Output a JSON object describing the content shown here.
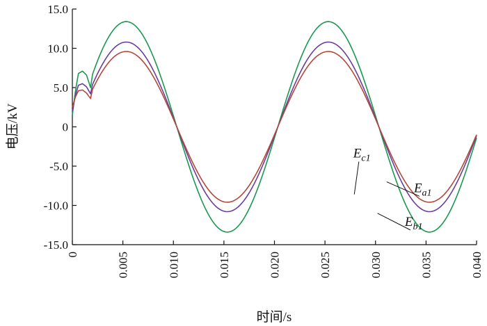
{
  "chart_data": {
    "type": "line",
    "title": "",
    "xlabel": "时间/s",
    "ylabel": "电压/kV",
    "xlim": [
      0,
      0.04
    ],
    "ylim": [
      -15,
      15
    ],
    "xticks": [
      "0",
      "0.005",
      "0.010",
      "0.015",
      "0.020",
      "0.025",
      "0.030",
      "0.035",
      "0.040"
    ],
    "yticks": [
      "15.0",
      "10.0",
      "5.0",
      "0",
      "-5.0",
      "-10.0",
      "-15.0"
    ],
    "grid": false,
    "legend": "none",
    "x_step": 0.0002,
    "series": [
      {
        "name": "Eb1",
        "label_main": "E",
        "label_sub": "b1",
        "color": "#1a9850",
        "amplitude": 13.4,
        "frequency_hz": 50,
        "phase_deg": -6,
        "points": [
          [
            0.0,
            1.5
          ],
          [
            0.0003,
            4.5
          ],
          [
            0.0006,
            6.8
          ],
          [
            0.001,
            7.1
          ],
          [
            0.0014,
            6.6
          ],
          [
            0.0018,
            5.0
          ]
        ]
      },
      {
        "name": "Ea1",
        "label_main": "E",
        "label_sub": "a1",
        "color": "#6a3d9a",
        "amplitude": 10.8,
        "frequency_hz": 50,
        "phase_deg": -6,
        "points": [
          [
            0.0,
            2.0
          ],
          [
            0.0003,
            4.0
          ],
          [
            0.0006,
            5.3
          ],
          [
            0.001,
            5.5
          ],
          [
            0.0014,
            5.1
          ],
          [
            0.0018,
            4.2
          ]
        ]
      },
      {
        "name": "Ec1",
        "label_main": "E",
        "label_sub": "c1",
        "color": "#b2473a",
        "amplitude": 9.6,
        "frequency_hz": 50,
        "phase_deg": -6,
        "points": [
          [
            0.0,
            2.5
          ],
          [
            0.0003,
            3.8
          ],
          [
            0.0006,
            4.6
          ],
          [
            0.001,
            4.7
          ],
          [
            0.0014,
            4.3
          ],
          [
            0.0018,
            3.6
          ]
        ]
      }
    ],
    "annotations": [
      {
        "series": "Ec1",
        "text_x": 0.0278,
        "text_y": -3.9,
        "target_x": 0.0279,
        "target_y": -8.6
      },
      {
        "series": "Ea1",
        "text_x": 0.0338,
        "text_y": -8.3,
        "target_x": 0.0311,
        "target_y": -7.0
      },
      {
        "series": "Eb1",
        "text_x": 0.0329,
        "text_y": -12.6,
        "target_x": 0.0302,
        "target_y": -11.0
      }
    ]
  }
}
